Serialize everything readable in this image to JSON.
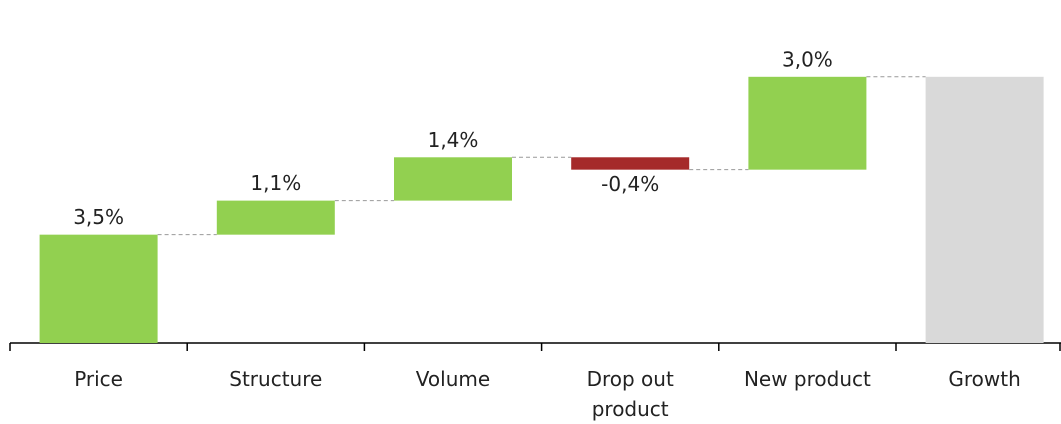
{
  "chart_data": {
    "type": "waterfall",
    "categories": [
      "Price",
      "Structure",
      "Volume",
      "Drop out product",
      "New product",
      "Growth"
    ],
    "values": [
      3.5,
      1.1,
      1.4,
      -0.4,
      3.0,
      8.6
    ],
    "value_labels": [
      "3,5%",
      "1,1%",
      "1,4%",
      "-0,4%",
      "3,0%",
      null
    ],
    "total": [
      false,
      false,
      false,
      false,
      false,
      true
    ],
    "colors": {
      "increase": "#92d050",
      "decrease": "#a52a2a",
      "total": "#d9d9d9"
    },
    "ylim": [
      0,
      10.5
    ]
  }
}
